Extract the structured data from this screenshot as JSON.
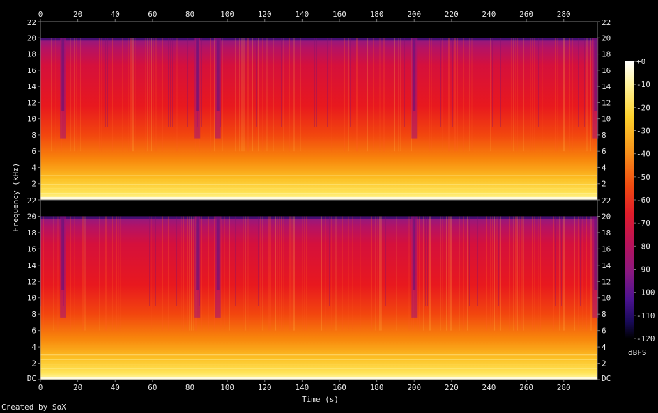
{
  "app": {
    "credit": "Created by SoX"
  },
  "colors": {
    "background": "#000000",
    "text": "#e6e6e6",
    "frame": "#7a7a7a"
  },
  "chart_data": {
    "type": "heatmap",
    "title": "",
    "xlabel": "Time (s)",
    "ylabel": "Frequency (kHz)",
    "xlim": [
      0,
      298
    ],
    "x_ticks": [
      "0",
      "20",
      "40",
      "60",
      "80",
      "100",
      "120",
      "140",
      "160",
      "180",
      "200",
      "220",
      "240",
      "260",
      "280"
    ],
    "channels": [
      {
        "y_ticks": [
          "2",
          "4",
          "6",
          "8",
          "10",
          "12",
          "14",
          "16",
          "18",
          "20",
          "22"
        ],
        "ylim": [
          0,
          22
        ]
      },
      {
        "y_ticks": [
          "DC",
          "2",
          "4",
          "6",
          "8",
          "10",
          "12",
          "14",
          "16",
          "18",
          "20",
          "22"
        ],
        "ylim": [
          0,
          22
        ]
      }
    ],
    "colorbar": {
      "unit": "dBFS",
      "ticks": [
        "+0",
        "-10",
        "-20",
        "-30",
        "-40",
        "-50",
        "-60",
        "-70",
        "-80",
        "-90",
        "-100",
        "-110",
        "-120"
      ],
      "range": [
        -120,
        0
      ]
    },
    "notes": {
      "cutoff_khz": 20,
      "dip_times_s": [
        12,
        84,
        95,
        200,
        297
      ]
    }
  }
}
